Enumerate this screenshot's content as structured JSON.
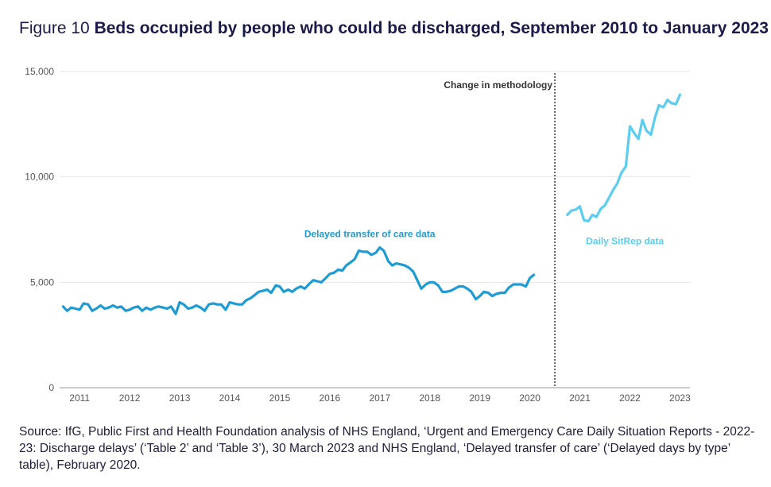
{
  "figure_label": "Figure 10",
  "title": "Beds occupied by people who could be discharged, September 2010 to January 2023",
  "source": "Source: IfG, Public First and Health Foundation analysis of NHS England, ‘Urgent and Emergency Care Daily Situation Reports - 2022-23: Discharge delays’ (‘Table 2’ and ‘Table 3’), 30 March 2023 and NHS England, ‘Delayed transfer of care’ (‘Delayed days by type’ table), February 2020.",
  "colors": {
    "dtoc": "#1d9bd4",
    "sitrep": "#5bcdf0",
    "grid": "#e6e6e6",
    "axis": "#9a9a9a",
    "text": "#555555",
    "annotation": "#333333"
  },
  "chart_data": {
    "type": "line",
    "title": "Beds occupied by people who could be discharged, September 2010 to January 2023",
    "xlabel": "",
    "ylabel": "",
    "xlim": [
      2010.6,
      2023.2
    ],
    "ylim": [
      0,
      15000
    ],
    "yticks": [
      0,
      5000,
      10000,
      15000
    ],
    "ytick_labels": [
      "0",
      "5,000",
      "10,000",
      "15,000"
    ],
    "xticks": [
      2011,
      2012,
      2013,
      2014,
      2015,
      2016,
      2017,
      2018,
      2019,
      2020,
      2021,
      2022,
      2023
    ],
    "xtick_labels": [
      "2011",
      "2012",
      "2013",
      "2014",
      "2015",
      "2016",
      "2017",
      "2018",
      "2019",
      "2020",
      "2021",
      "2022",
      "2023"
    ],
    "grid": true,
    "annotations": [
      {
        "text": "Change in methodology",
        "x": 2020.5
      }
    ],
    "series": [
      {
        "name": "Delayed transfer of care data",
        "x": [
          2010.67,
          2010.75,
          2010.83,
          2010.92,
          2011.0,
          2011.08,
          2011.17,
          2011.25,
          2011.33,
          2011.42,
          2011.5,
          2011.58,
          2011.67,
          2011.75,
          2011.83,
          2011.92,
          2012.0,
          2012.08,
          2012.17,
          2012.25,
          2012.33,
          2012.42,
          2012.5,
          2012.58,
          2012.67,
          2012.75,
          2012.83,
          2012.92,
          2013.0,
          2013.08,
          2013.17,
          2013.25,
          2013.33,
          2013.42,
          2013.5,
          2013.58,
          2013.67,
          2013.75,
          2013.83,
          2013.92,
          2014.0,
          2014.08,
          2014.17,
          2014.25,
          2014.33,
          2014.42,
          2014.5,
          2014.58,
          2014.67,
          2014.75,
          2014.83,
          2014.92,
          2015.0,
          2015.08,
          2015.17,
          2015.25,
          2015.33,
          2015.42,
          2015.5,
          2015.58,
          2015.67,
          2015.75,
          2015.83,
          2015.92,
          2016.0,
          2016.08,
          2016.17,
          2016.25,
          2016.33,
          2016.42,
          2016.5,
          2016.58,
          2016.67,
          2016.75,
          2016.83,
          2016.92,
          2017.0,
          2017.08,
          2017.17,
          2017.25,
          2017.33,
          2017.42,
          2017.5,
          2017.58,
          2017.67,
          2017.75,
          2017.83,
          2017.92,
          2018.0,
          2018.08,
          2018.17,
          2018.25,
          2018.33,
          2018.42,
          2018.5,
          2018.58,
          2018.67,
          2018.75,
          2018.83,
          2018.92,
          2019.0,
          2019.08,
          2019.17,
          2019.25,
          2019.33,
          2019.42,
          2019.5,
          2019.58,
          2019.67,
          2019.75,
          2019.83,
          2019.92,
          2020.0,
          2020.08
        ],
        "values": [
          3850,
          3650,
          3800,
          3750,
          3700,
          4000,
          3950,
          3650,
          3750,
          3900,
          3750,
          3800,
          3900,
          3800,
          3850,
          3650,
          3700,
          3800,
          3850,
          3650,
          3800,
          3700,
          3800,
          3850,
          3800,
          3750,
          3850,
          3500,
          4050,
          3950,
          3750,
          3800,
          3900,
          3800,
          3650,
          3950,
          4000,
          3950,
          3950,
          3700,
          4050,
          4000,
          3950,
          3950,
          4150,
          4250,
          4400,
          4550,
          4600,
          4650,
          4500,
          4850,
          4800,
          4550,
          4650,
          4550,
          4700,
          4800,
          4700,
          4900,
          5100,
          5050,
          5000,
          5200,
          5400,
          5450,
          5600,
          5550,
          5800,
          5950,
          6100,
          6500,
          6450,
          6450,
          6300,
          6400,
          6650,
          6500,
          6000,
          5800,
          5900,
          5850,
          5800,
          5700,
          5500,
          5100,
          4700,
          4900,
          5000,
          5000,
          4850,
          4550,
          4550,
          4600,
          4700,
          4800,
          4800,
          4700,
          4550,
          4200,
          4350,
          4550,
          4500,
          4350,
          4450,
          4500,
          4500,
          4750,
          4900,
          4900,
          4900,
          4800,
          5200,
          5350
        ]
      },
      {
        "name": "Daily SitRep data",
        "x": [
          2020.75,
          2020.83,
          2020.92,
          2021.0,
          2021.08,
          2021.17,
          2021.25,
          2021.33,
          2021.42,
          2021.5,
          2021.58,
          2021.67,
          2021.75,
          2021.83,
          2021.92,
          2022.0,
          2022.08,
          2022.17,
          2022.25,
          2022.33,
          2022.42,
          2022.5,
          2022.58,
          2022.67,
          2022.75,
          2022.83,
          2022.92,
          2023.0
        ],
        "values": [
          8200,
          8400,
          8450,
          8600,
          7950,
          7900,
          8200,
          8100,
          8500,
          8650,
          9000,
          9400,
          9700,
          10200,
          10500,
          12400,
          12100,
          11800,
          12700,
          12200,
          12000,
          12800,
          13400,
          13300,
          13650,
          13500,
          13450,
          13900
        ]
      }
    ]
  }
}
